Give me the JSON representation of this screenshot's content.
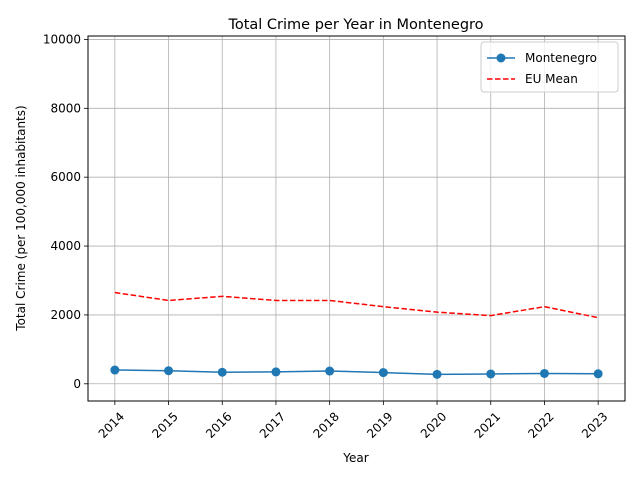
{
  "chart_data": {
    "type": "line",
    "title": "Total Crime per Year in Montenegro",
    "xlabel": "Year",
    "ylabel": "Total Crime (per 100,000 inhabitants)",
    "categories": [
      "2014",
      "2015",
      "2016",
      "2017",
      "2018",
      "2019",
      "2020",
      "2021",
      "2022",
      "2023"
    ],
    "series": [
      {
        "name": "Montenegro",
        "values": [
          400,
          380,
          335,
          345,
          370,
          325,
          275,
          285,
          300,
          290
        ],
        "color": "#1f77b4",
        "style": "solid",
        "marker": "circle"
      },
      {
        "name": "EU Mean",
        "values": [
          2650,
          2420,
          2540,
          2420,
          2420,
          2240,
          2080,
          1980,
          2240,
          1920
        ],
        "color": "#ff0000",
        "style": "dashed",
        "marker": "none"
      }
    ],
    "ylim": [
      -500,
      10100
    ],
    "yticks": [
      0,
      2000,
      4000,
      6000,
      8000,
      10000
    ],
    "grid": true,
    "legend_position": "top-right"
  }
}
